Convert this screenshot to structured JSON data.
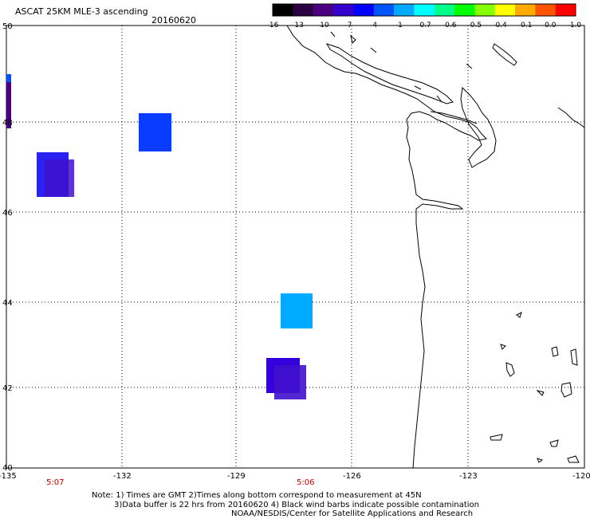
{
  "title": {
    "main": "ASCAT 25KM MLE-3 ascending",
    "date": "20160620"
  },
  "colorbar": {
    "labels": [
      "-16",
      "-13",
      "-10",
      "-7",
      "-4",
      "-1",
      "-0.7",
      "-0.6",
      "-0.5",
      "-0.4",
      "-0.1",
      "0.0",
      "1.0"
    ],
    "colors": [
      "#000000",
      "#2a0040",
      "#4b0082",
      "#3300cc",
      "#0000ff",
      "#0055ff",
      "#00aaff",
      "#00ffff",
      "#00ff88",
      "#00ff00",
      "#88ff00",
      "#ffff00",
      "#ffaa00",
      "#ff5500",
      "#ff0000"
    ]
  },
  "axes": {
    "lat_labels": [
      "50",
      "48",
      "46",
      "44",
      "42",
      "40"
    ],
    "lon_labels": [
      "-135",
      "-132",
      "-129",
      "-126",
      "-123",
      "-120"
    ]
  },
  "time_labels": [
    "5:07",
    "5:06"
  ],
  "swaths": [
    {
      "name": "swath-edge-top",
      "color": "#0055ff"
    },
    {
      "name": "swath-edge-bottom",
      "color": "#4b0082"
    },
    {
      "name": "swath-a",
      "color": "#0a3cff"
    },
    {
      "name": "swath-b1",
      "color": "#2a22f0"
    },
    {
      "name": "swath-b2",
      "color": "#4010cc"
    },
    {
      "name": "swath-c",
      "color": "#00aaff"
    },
    {
      "name": "swath-d1",
      "color": "#3300dd"
    },
    {
      "name": "swath-d2",
      "color": "#4010cc"
    }
  ],
  "notes": {
    "line1": "Note: 1) Times are GMT 2)Times along bottom correspond to measurement at 45N",
    "line2": "3)Data buffer is 22 hrs from 20160620 4) Black wind barbs indicate possible contamination",
    "line3": "NOAA/NESDIS/Center for Satellite Applications and Research"
  }
}
